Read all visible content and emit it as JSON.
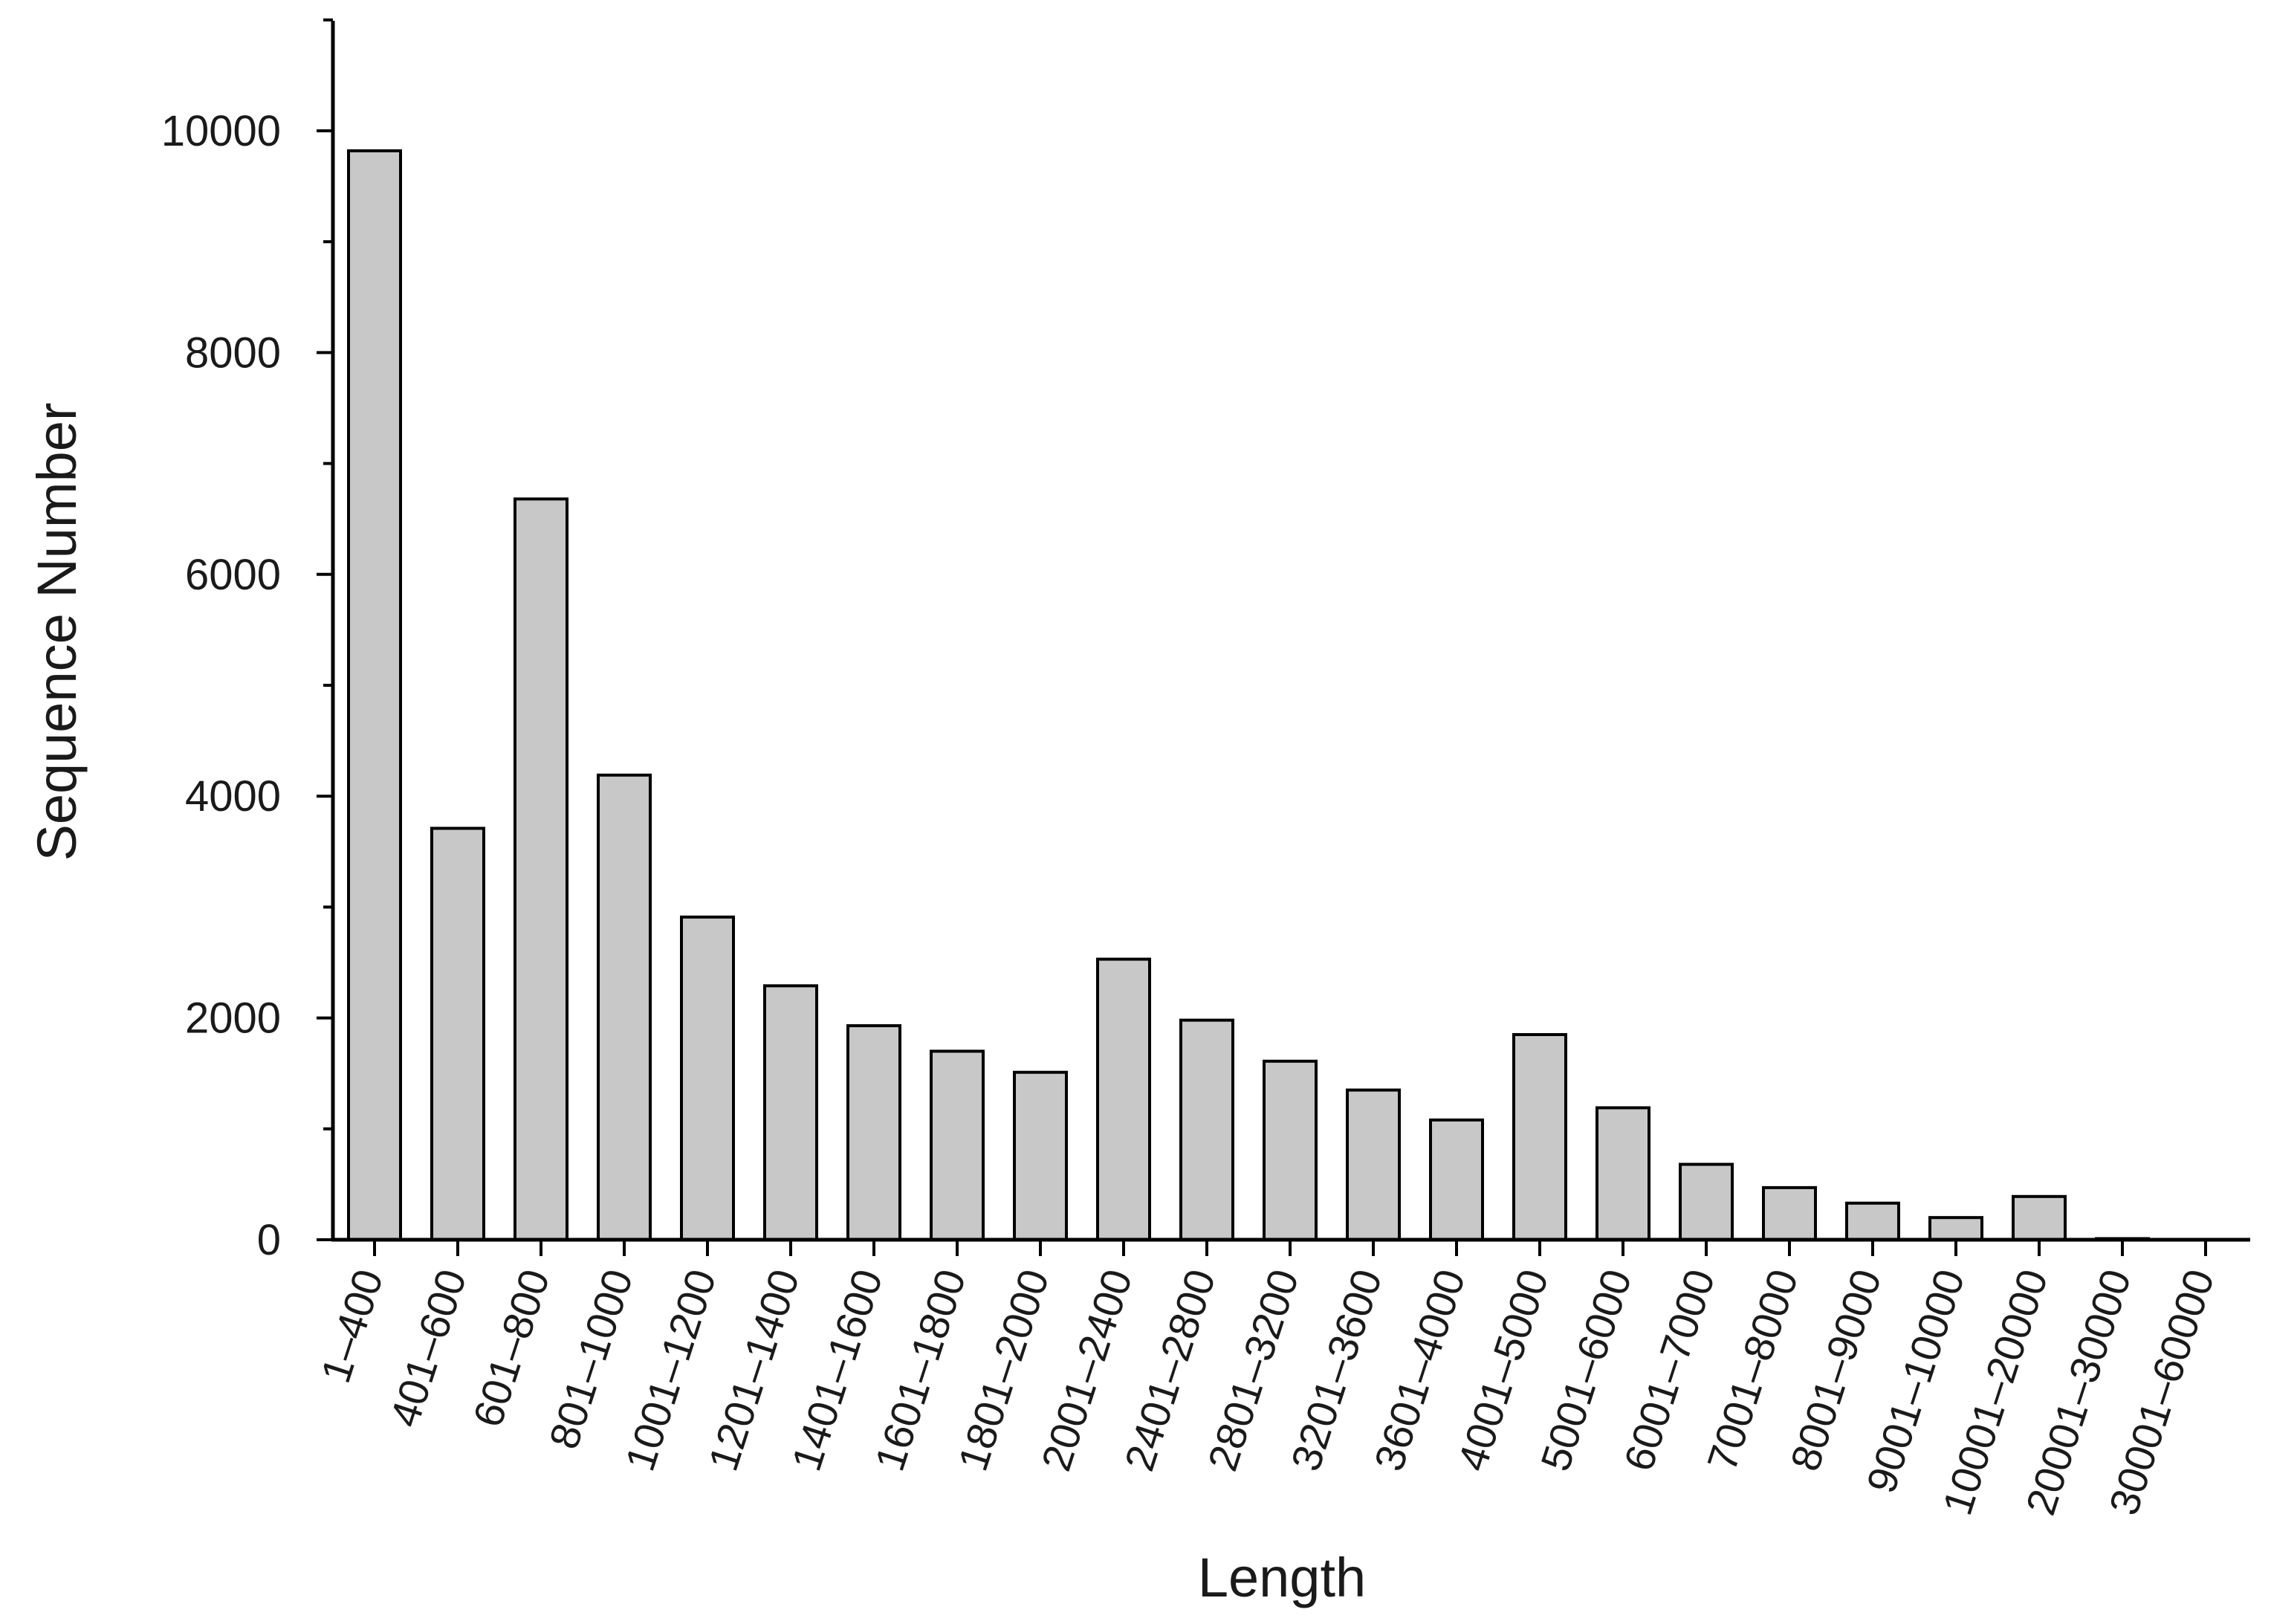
{
  "chart_data": {
    "type": "bar",
    "title": "",
    "xlabel": "Length",
    "ylabel": "Sequence Number",
    "ylim": [
      0,
      11000
    ],
    "yticks": [
      0,
      2000,
      4000,
      6000,
      8000,
      10000
    ],
    "yticks_minor_step": 1000,
    "grid": false,
    "legend": "none",
    "bar_color": "#c8c8c8",
    "edge_color": "#000000",
    "categories": [
      "1–400",
      "401–600",
      "601–800",
      "801–1000",
      "1001–1200",
      "1201–1400",
      "1401–1600",
      "1601–1800",
      "1801–2000",
      "2001–2400",
      "2401–2800",
      "2801–3200",
      "3201–3600",
      "3601–4000",
      "4001–5000",
      "5001–6000",
      "6001–7000",
      "7001–8000",
      "8001–9000",
      "9001–10000",
      "10001–20000",
      "20001–30000",
      "30001–60000"
    ],
    "values": [
      9820,
      3710,
      6680,
      4190,
      2910,
      2290,
      1930,
      1700,
      1510,
      2530,
      1980,
      1610,
      1350,
      1080,
      1850,
      1190,
      680,
      470,
      330,
      200,
      390,
      10,
      0
    ]
  }
}
